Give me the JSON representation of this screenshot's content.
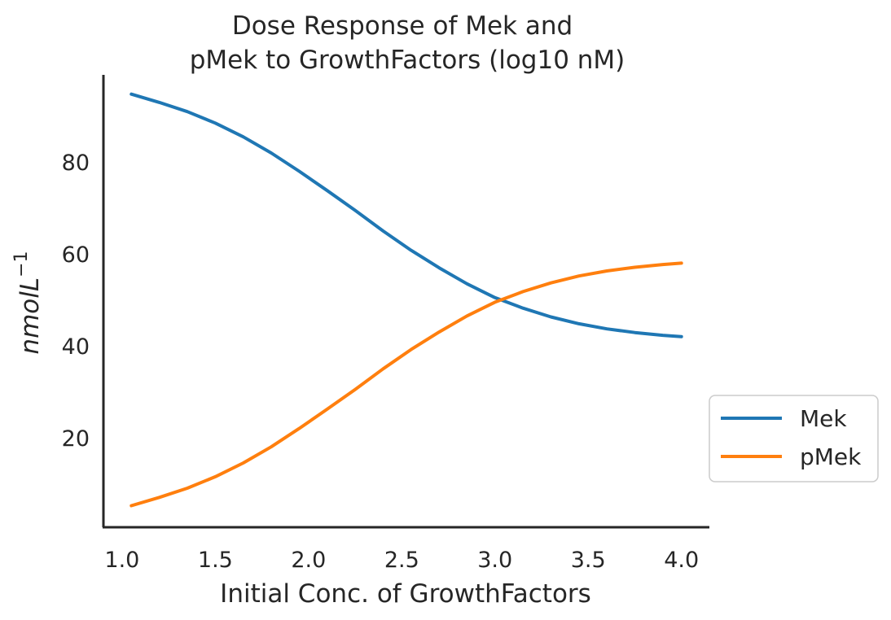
{
  "chart_data": {
    "type": "line",
    "title_lines": [
      "Dose Response of Mek and",
      "pMek to GrowthFactors (log10 nM)"
    ],
    "xlabel": "Initial Conc. of GrowthFactors",
    "ylabel_main": "nmolL",
    "ylabel_exponent": "−1",
    "xlim": [
      0.9,
      4.15
    ],
    "ylim": [
      0.5,
      99
    ],
    "x_ticks": [
      1.0,
      1.5,
      2.0,
      2.5,
      3.0,
      3.5,
      4.0
    ],
    "x_tick_labels": [
      "1.0",
      "1.5",
      "2.0",
      "2.5",
      "3.0",
      "3.5",
      "4.0"
    ],
    "y_ticks": [
      20,
      40,
      60,
      80
    ],
    "y_tick_labels": [
      "20",
      "40",
      "60",
      "80"
    ],
    "grid": false,
    "legend_position": "outside-right",
    "x": [
      1.05,
      1.2,
      1.35,
      1.5,
      1.65,
      1.8,
      1.95,
      2.1,
      2.25,
      2.4,
      2.55,
      2.7,
      2.85,
      3.0,
      3.15,
      3.3,
      3.45,
      3.6,
      3.75,
      3.9,
      4.0
    ],
    "series": [
      {
        "name": "Mek",
        "color": "#1f77b4",
        "values": [
          94.8,
          93.0,
          91.0,
          88.5,
          85.5,
          82.0,
          78.0,
          73.8,
          69.5,
          65.0,
          60.8,
          57.0,
          53.5,
          50.5,
          48.2,
          46.3,
          44.8,
          43.7,
          42.9,
          42.3,
          42.0
        ]
      },
      {
        "name": "pMek",
        "color": "#ff7f0e",
        "values": [
          5.2,
          7.0,
          9.0,
          11.5,
          14.5,
          18.0,
          22.0,
          26.2,
          30.5,
          35.0,
          39.2,
          43.0,
          46.5,
          49.5,
          51.8,
          53.7,
          55.2,
          56.3,
          57.1,
          57.7,
          58.0
        ]
      }
    ]
  }
}
